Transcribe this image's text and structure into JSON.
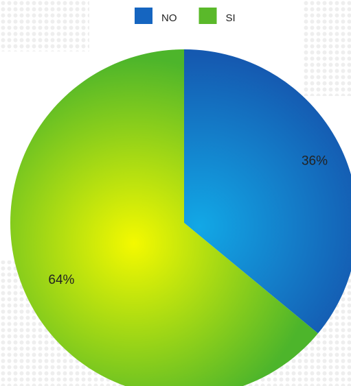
{
  "chart_data": {
    "type": "pie",
    "categories": [
      "NO",
      "SI"
    ],
    "values": [
      36,
      64
    ],
    "value_labels": [
      "36%",
      "64%"
    ],
    "colors": [
      "#1565c0",
      "#5ab92a"
    ]
  }
}
